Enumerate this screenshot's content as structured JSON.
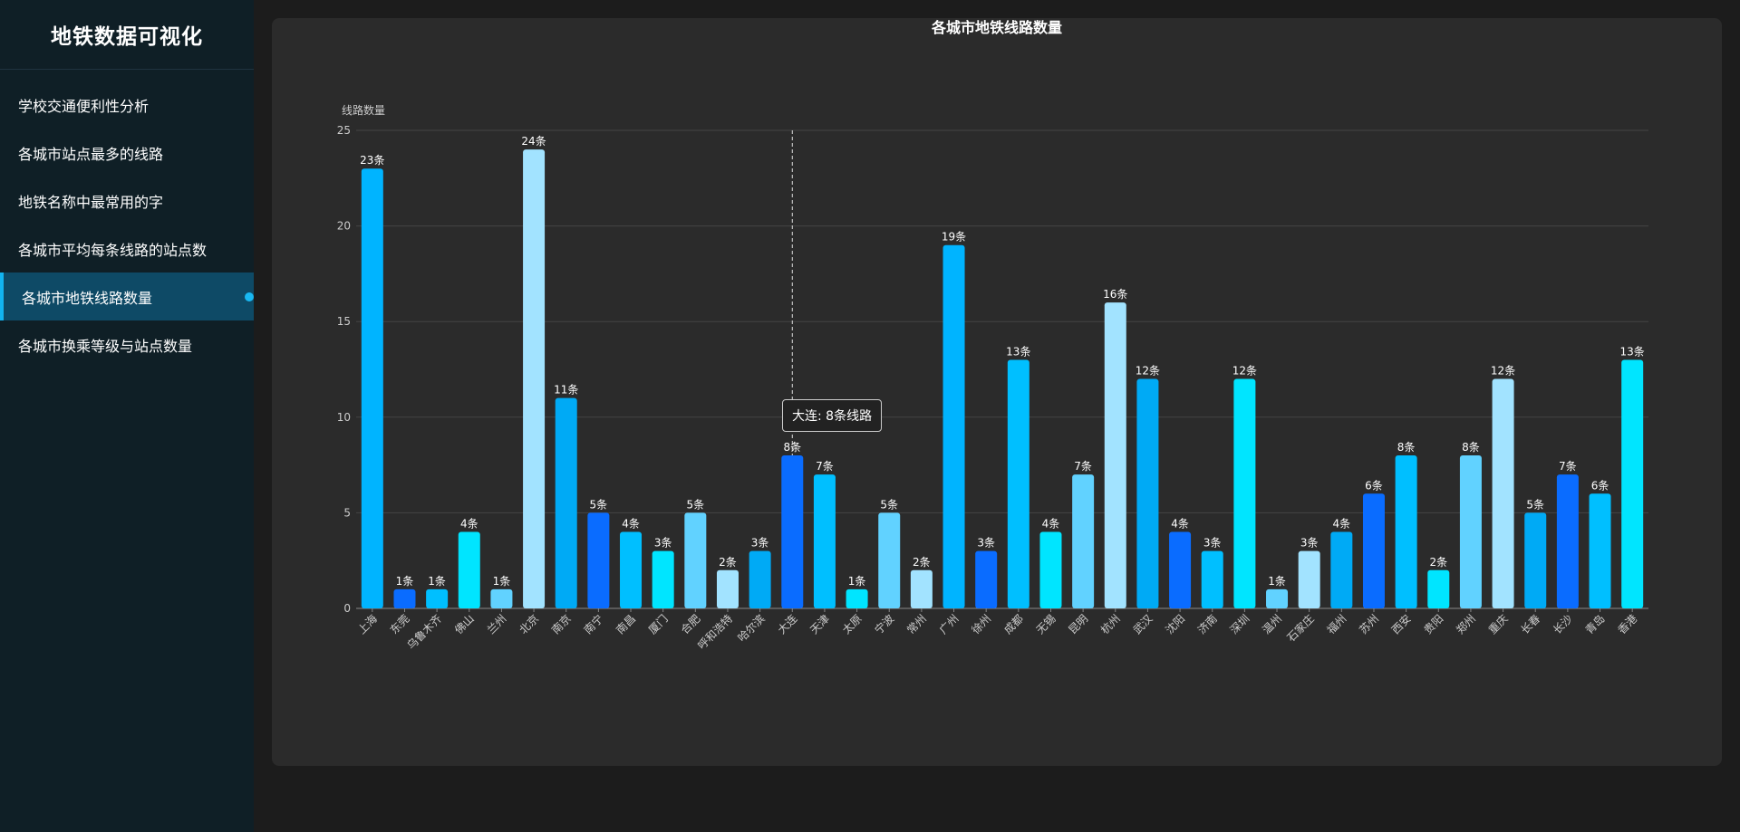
{
  "sidebar": {
    "title": "地铁数据可视化",
    "items": [
      {
        "label": "学校交通便利性分析",
        "active": false
      },
      {
        "label": "各城市站点最多的线路",
        "active": false
      },
      {
        "label": "地铁名称中最常用的字",
        "active": false
      },
      {
        "label": "各城市平均每条线路的站点数",
        "active": false
      },
      {
        "label": "各城市地铁线路数量",
        "active": true
      },
      {
        "label": "各城市换乘等级与站点数量",
        "active": false
      }
    ]
  },
  "tooltip": {
    "text": "大连: 8条线路"
  },
  "chart_data": {
    "type": "bar",
    "title": "各城市地铁线路数量",
    "ylabel": "线路数量",
    "xlabel": "",
    "ylim": [
      0,
      25
    ],
    "yticks": [
      0,
      5,
      10,
      15,
      20,
      25
    ],
    "grid": true,
    "label_suffix": "条",
    "categories": [
      "上海",
      "东莞",
      "乌鲁木齐",
      "佛山",
      "兰州",
      "北京",
      "南京",
      "南宁",
      "南昌",
      "厦门",
      "合肥",
      "呼和浩特",
      "哈尔滨",
      "大连",
      "天津",
      "太原",
      "宁波",
      "常州",
      "广州",
      "徐州",
      "成都",
      "无锡",
      "昆明",
      "杭州",
      "武汉",
      "沈阳",
      "济南",
      "深圳",
      "温州",
      "石家庄",
      "福州",
      "苏州",
      "西安",
      "贵阳",
      "郑州",
      "重庆",
      "长春",
      "长沙",
      "青岛",
      "香港"
    ],
    "values": [
      23,
      1,
      1,
      4,
      1,
      24,
      11,
      5,
      4,
      3,
      5,
      2,
      3,
      8,
      7,
      1,
      5,
      2,
      19,
      3,
      13,
      4,
      7,
      16,
      12,
      4,
      3,
      12,
      1,
      3,
      4,
      6,
      8,
      2,
      8,
      12,
      5,
      7,
      6,
      13
    ],
    "colors": [
      "#00b4ff",
      "#0a6cff",
      "#00bfff",
      "#00e5ff",
      "#61d2ff",
      "#a2e3ff",
      "#00aaf5",
      "#0a6cff",
      "#00bfff",
      "#00e5ff",
      "#61d2ff",
      "#a2e3ff",
      "#00aaf5",
      "#0a6cff",
      "#00bfff",
      "#00e5ff",
      "#61d2ff",
      "#a2e3ff",
      "#00b4ff",
      "#0a6cff",
      "#00bfff",
      "#00e5ff",
      "#61d2ff",
      "#a2e3ff",
      "#00aaf5",
      "#0a6cff",
      "#00bfff",
      "#00e5ff",
      "#61d2ff",
      "#a2e3ff",
      "#00aaf5",
      "#0a6cff",
      "#00bfff",
      "#00e5ff",
      "#61d2ff",
      "#a2e3ff",
      "#00aaf5",
      "#0a6cff",
      "#00bfff",
      "#00e5ff"
    ],
    "highlight_category": "大连"
  }
}
